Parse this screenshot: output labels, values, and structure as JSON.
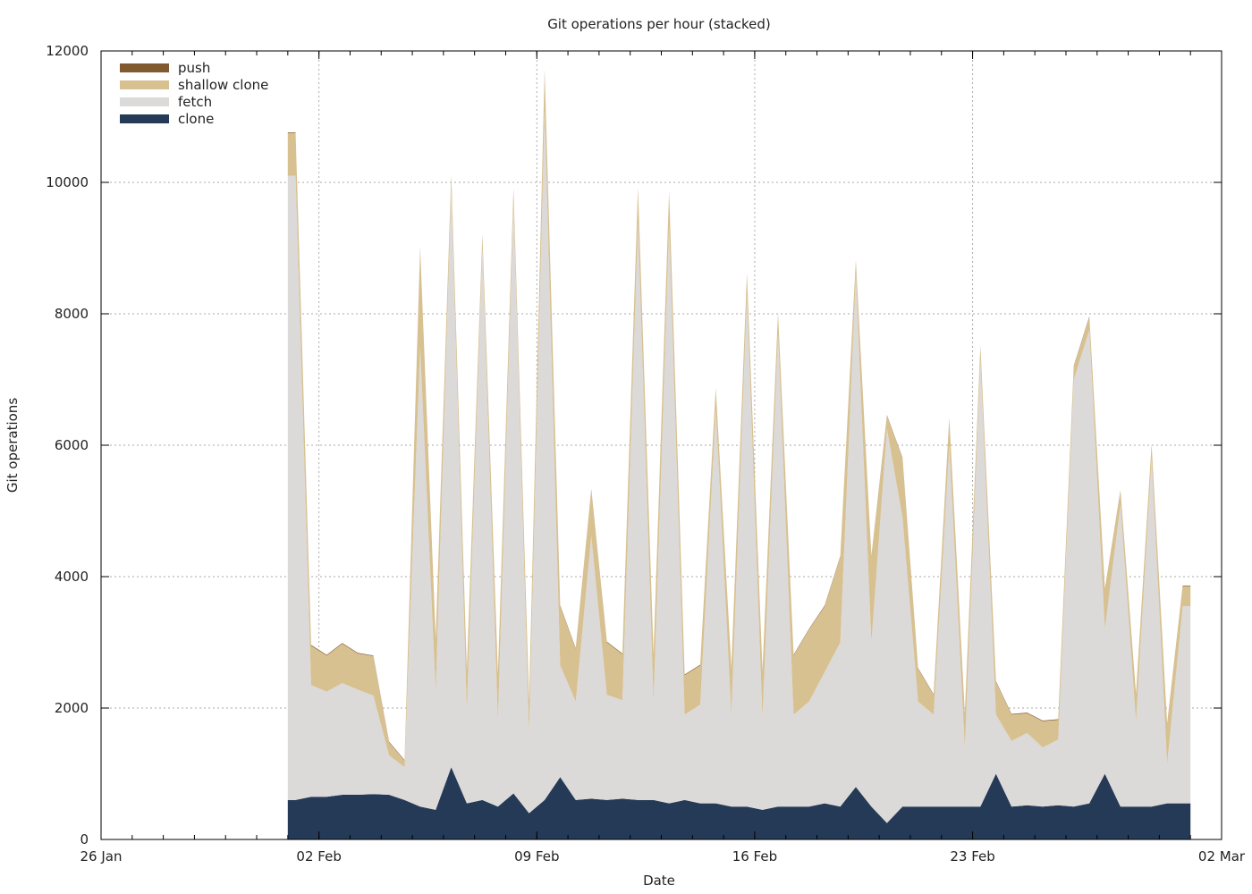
{
  "chart_data": {
    "type": "area",
    "stacked": true,
    "title": "Git operations per hour (stacked)",
    "xlabel": "Date",
    "ylabel": "Git operations",
    "xlim": [
      "2024-01-26",
      "2024-03-02"
    ],
    "ylim": [
      0,
      12000
    ],
    "yticks": [
      0,
      2000,
      4000,
      6000,
      8000,
      10000,
      12000
    ],
    "xticks": [
      {
        "date": "2024-01-26",
        "label": "26 Jan"
      },
      {
        "date": "2024-02-02",
        "label": "02 Feb"
      },
      {
        "date": "2024-02-09",
        "label": "09 Feb"
      },
      {
        "date": "2024-02-16",
        "label": "16 Feb"
      },
      {
        "date": "2024-02-23",
        "label": "23 Feb"
      },
      {
        "date": "2024-03-02",
        "label": "02 Mar"
      }
    ],
    "grid": true,
    "legend_position": "top-left",
    "legend": [
      {
        "name": "push",
        "color": "#825a32"
      },
      {
        "name": "shallow clone",
        "color": "#d8c190"
      },
      {
        "name": "fetch",
        "color": "#dcd9d9"
      },
      {
        "name": "clone",
        "color": "#253a56"
      }
    ],
    "x": [
      "2024-02-01 00:00",
      "2024-02-01 12:00",
      "2024-02-02 00:00",
      "2024-02-02 12:00",
      "2024-02-03 00:00",
      "2024-02-03 12:00",
      "2024-02-04 00:00",
      "2024-02-04 12:00",
      "2024-02-05 00:00",
      "2024-02-05 12:00",
      "2024-02-06 00:00",
      "2024-02-06 12:00",
      "2024-02-07 00:00",
      "2024-02-07 12:00",
      "2024-02-08 00:00",
      "2024-02-08 12:00",
      "2024-02-09 00:00",
      "2024-02-09 12:00",
      "2024-02-10 00:00",
      "2024-02-10 12:00",
      "2024-02-11 00:00",
      "2024-02-11 12:00",
      "2024-02-12 00:00",
      "2024-02-12 12:00",
      "2024-02-13 00:00",
      "2024-02-13 12:00",
      "2024-02-14 00:00",
      "2024-02-14 12:00",
      "2024-02-15 00:00",
      "2024-02-15 12:00",
      "2024-02-16 00:00",
      "2024-02-16 12:00",
      "2024-02-17 00:00",
      "2024-02-17 12:00",
      "2024-02-18 00:00",
      "2024-02-18 12:00",
      "2024-02-19 00:00",
      "2024-02-19 12:00",
      "2024-02-20 00:00",
      "2024-02-20 12:00",
      "2024-02-21 00:00",
      "2024-02-21 12:00",
      "2024-02-22 00:00",
      "2024-02-22 12:00",
      "2024-02-23 00:00",
      "2024-02-23 12:00",
      "2024-02-24 00:00",
      "2024-02-24 12:00",
      "2024-02-25 00:00",
      "2024-02-25 12:00",
      "2024-02-26 00:00",
      "2024-02-26 12:00",
      "2024-02-27 00:00",
      "2024-02-27 12:00",
      "2024-02-28 00:00",
      "2024-02-28 12:00",
      "2024-02-29 00:00",
      "2024-02-29 12:00"
    ],
    "series": [
      {
        "name": "clone",
        "values": [
          600,
          650,
          650,
          680,
          680,
          690,
          680,
          600,
          500,
          450,
          1100,
          550,
          600,
          500,
          700,
          400,
          600,
          950,
          600,
          620,
          600,
          620,
          600,
          600,
          550,
          600,
          550,
          550,
          500,
          500,
          450,
          500,
          500,
          500,
          550,
          500,
          800,
          500,
          250,
          500,
          500,
          500,
          500,
          500,
          500,
          1000,
          500,
          520,
          500,
          520,
          500,
          550,
          1000,
          500,
          500,
          500,
          550,
          550
        ]
      },
      {
        "name": "fetch",
        "values": [
          9500,
          1700,
          1600,
          1700,
          1600,
          1500,
          600,
          500,
          7000,
          1800,
          8800,
          1400,
          8400,
          1300,
          9000,
          1200,
          10500,
          1700,
          1500,
          4000,
          1600,
          1500,
          8800,
          1500,
          8800,
          1300,
          1500,
          6000,
          1400,
          7800,
          1400,
          7200,
          1400,
          1600,
          2000,
          2500,
          7800,
          2500,
          6000,
          4400,
          1600,
          1400,
          5500,
          900,
          6800,
          900,
          1000,
          1100,
          900,
          1000,
          6500,
          7200,
          2200,
          4600,
          1300,
          5300,
          600,
          3000
        ]
      },
      {
        "name": "shallow clone",
        "values": [
          650,
          600,
          550,
          600,
          550,
          600,
          200,
          100,
          1500,
          800,
          200,
          600,
          200,
          700,
          200,
          500,
          600,
          900,
          800,
          700,
          800,
          700,
          500,
          700,
          500,
          600,
          600,
          300,
          700,
          300,
          700,
          300,
          900,
          1100,
          1000,
          1300,
          200,
          1300,
          200,
          900,
          500,
          300,
          400,
          500,
          200,
          500,
          400,
          300,
          400,
          300,
          200,
          200,
          600,
          200,
          400,
          200,
          600,
          300
        ]
      },
      {
        "name": "push",
        "values": [
          10,
          10,
          10,
          10,
          10,
          10,
          10,
          10,
          10,
          10,
          10,
          10,
          10,
          10,
          10,
          10,
          10,
          10,
          10,
          10,
          10,
          10,
          10,
          10,
          10,
          10,
          10,
          10,
          10,
          10,
          10,
          10,
          10,
          10,
          10,
          10,
          10,
          10,
          10,
          10,
          10,
          10,
          10,
          10,
          10,
          10,
          10,
          10,
          10,
          10,
          10,
          10,
          10,
          10,
          10,
          10,
          10,
          10
        ]
      }
    ]
  }
}
